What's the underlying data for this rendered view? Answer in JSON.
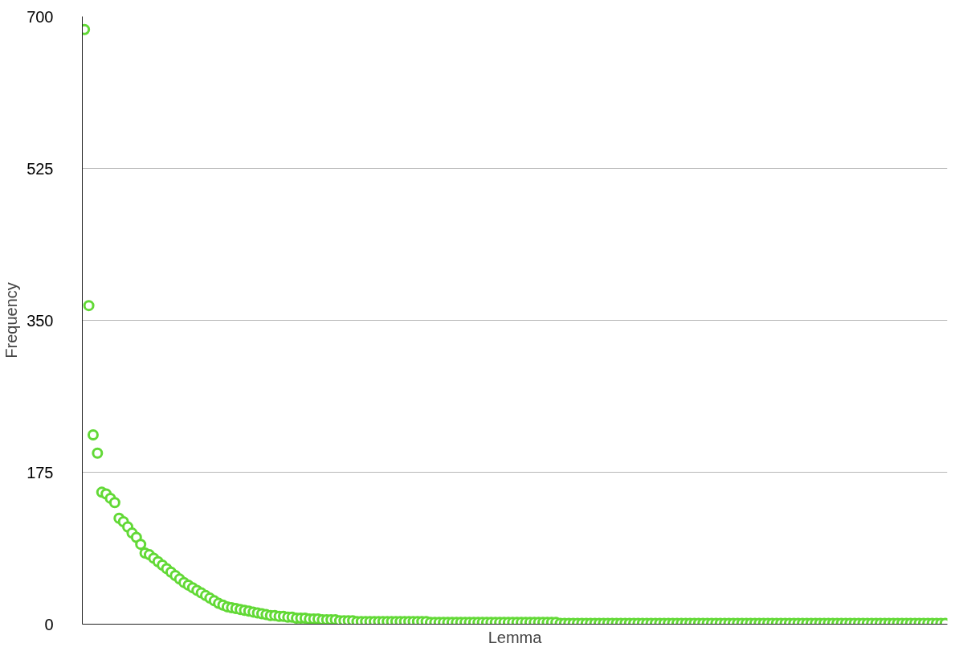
{
  "chart_data": {
    "type": "scatter",
    "xlabel": "Lemma",
    "ylabel": "Frequency",
    "categories": [
      null,
      null,
      null,
      null,
      null,
      null,
      null,
      null,
      null,
      null,
      null,
      null,
      null,
      null,
      null,
      null,
      null,
      null,
      null,
      null,
      null,
      null,
      null,
      null,
      null,
      null,
      null,
      null,
      null,
      null,
      null,
      null,
      null,
      null,
      null,
      null,
      null,
      null,
      null,
      null,
      null,
      null,
      null,
      null,
      null,
      null,
      null,
      null,
      null,
      null,
      null,
      null,
      null,
      null,
      null,
      null,
      null,
      null,
      null,
      null,
      null,
      null,
      null,
      null,
      null,
      null,
      null,
      null,
      null,
      null,
      null,
      null,
      null,
      null,
      null,
      null,
      null,
      null,
      null,
      null,
      null,
      null,
      null,
      null,
      null,
      null,
      null,
      null,
      null,
      null,
      null,
      null,
      null,
      null,
      null,
      null,
      null,
      null,
      null,
      null,
      null,
      null,
      null,
      null,
      null,
      null,
      null,
      null,
      null,
      null,
      null,
      null,
      null,
      null,
      null,
      null,
      null,
      null,
      null,
      null,
      null,
      null,
      null,
      null,
      null,
      null,
      null,
      null,
      null,
      null,
      null,
      null,
      null,
      null,
      null,
      null,
      null,
      null,
      null,
      null,
      null,
      null,
      null,
      null,
      null,
      null,
      null,
      null,
      null,
      null,
      null,
      null,
      null,
      null,
      null,
      null,
      null,
      null,
      null,
      null,
      null,
      null,
      null,
      null,
      null,
      null,
      null,
      null,
      null,
      null,
      null,
      null,
      null,
      null,
      null,
      null,
      null,
      null,
      null,
      null,
      null,
      null,
      null,
      null,
      null,
      null,
      null,
      null,
      null,
      null,
      null,
      null,
      null,
      null,
      null,
      null,
      null,
      null,
      null,
      null
    ],
    "series": [
      {
        "color": "#62d936",
        "values": [
          685,
          367,
          218,
          197,
          152,
          150,
          145,
          140,
          122,
          118,
          112,
          105,
          100,
          92,
          82,
          80,
          76,
          72,
          68,
          64,
          60,
          56,
          52,
          48,
          45,
          42,
          39,
          36,
          33,
          30,
          27,
          24,
          22,
          20,
          19,
          18,
          17,
          16,
          15,
          14,
          13,
          12,
          11,
          10,
          10,
          9,
          9,
          8,
          8,
          7,
          7,
          7,
          6,
          6,
          6,
          5,
          5,
          5,
          5,
          4,
          4,
          4,
          4,
          3,
          3,
          3,
          3,
          3,
          3,
          3,
          3,
          3,
          3,
          3,
          3,
          3,
          3,
          3,
          3,
          3,
          2,
          2,
          2,
          2,
          2,
          2,
          2,
          2,
          2,
          2,
          2,
          2,
          2,
          2,
          2,
          2,
          2,
          2,
          2,
          2,
          2,
          2,
          2,
          2,
          2,
          2,
          2,
          2,
          2,
          2,
          1,
          1,
          1,
          1,
          1,
          1,
          1,
          1,
          1,
          1,
          1,
          1,
          1,
          1,
          1,
          1,
          1,
          1,
          1,
          1,
          1,
          1,
          1,
          1,
          1,
          1,
          1,
          1,
          1,
          1,
          1,
          1,
          1,
          1,
          1,
          1,
          1,
          1,
          1,
          1,
          1,
          1,
          1,
          1,
          1,
          1,
          1,
          1,
          1,
          1,
          1,
          1,
          1,
          1,
          1,
          1,
          1,
          1,
          1,
          1,
          1,
          1,
          1,
          1,
          1,
          1,
          1,
          1,
          1,
          1,
          1,
          1,
          1,
          1,
          1,
          1,
          1,
          1,
          1,
          1,
          1,
          1,
          1,
          1,
          1,
          1,
          1,
          1,
          1,
          1
        ]
      }
    ],
    "ylim": [
      0,
      700
    ],
    "yticks": [
      0,
      175,
      350,
      525,
      700
    ],
    "grid": "y",
    "marker": "circle",
    "tick_labels": "y"
  }
}
